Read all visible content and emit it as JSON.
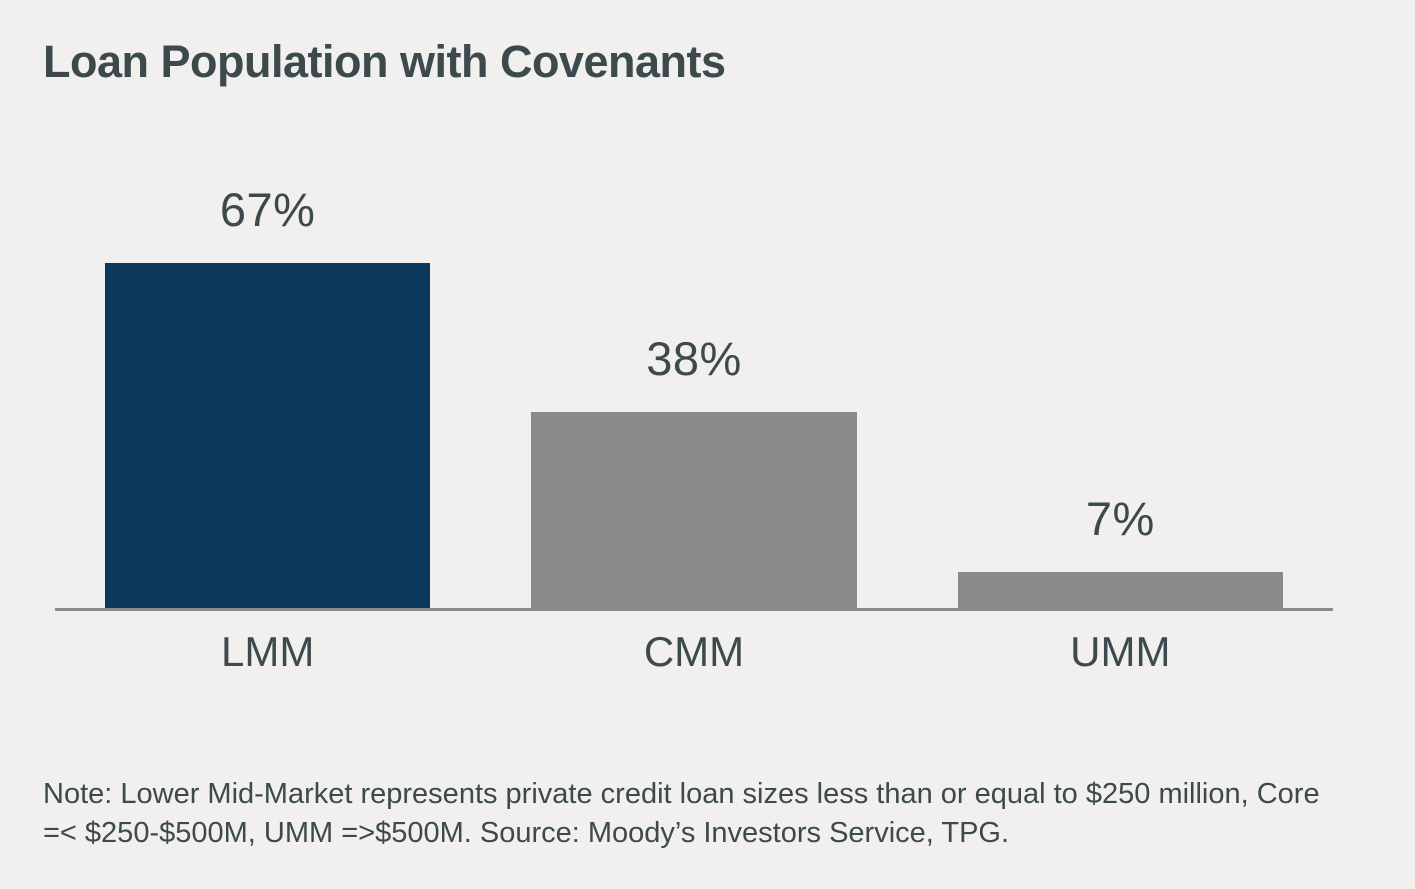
{
  "title": "Loan Population with Covenants",
  "note": "Note: Lower Mid-Market represents private credit loan sizes less than or equal to $250 million, Core =< $250-$500M, UMM =>$500M. Source: Moody’s Investors Service, TPG.",
  "colors": {
    "background": "#f1f0ee",
    "text": "#3c4a4d",
    "navy_bar": "#0d3a5c",
    "gray_bar": "#8a8a8a",
    "axis": "#8b8b8b"
  },
  "chart_data": {
    "type": "bar",
    "title": "Loan Population with Covenants",
    "categories": [
      "LMM",
      "CMM",
      "UMM"
    ],
    "values": [
      67,
      38,
      7
    ],
    "value_labels": [
      "67%",
      "38%",
      "7%"
    ],
    "bar_colors": [
      "#0d3a5c",
      "#8a8a8a",
      "#8a8a8a"
    ],
    "xlabel": "",
    "ylabel": "",
    "ylim": [
      0,
      70
    ],
    "grid": false,
    "legend": false,
    "data_labels_position": "above-bars",
    "axis_line": "x-axis only"
  }
}
